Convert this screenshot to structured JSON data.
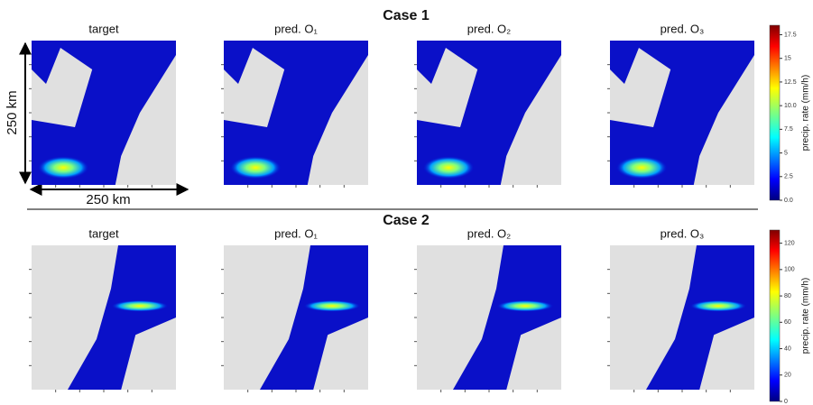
{
  "chart_data": [
    {
      "type": "heatmap",
      "title": "Case 1",
      "panels": [
        "target",
        "pred. O₁",
        "pred. O₂",
        "pred. O₃"
      ],
      "scale_labels": [
        "250 km",
        "250 km"
      ],
      "colorbar_label": "precip. rate (mm/h)",
      "clim": [
        0,
        18.5
      ],
      "cticks": [
        {
          "value": 0,
          "label": "0.0"
        },
        2.5,
        5,
        {
          "value": 7.5,
          "label": "7.5"
        },
        {
          "value": 10,
          "label": "10.0"
        },
        12.5,
        15,
        17.5
      ]
    },
    {
      "type": "heatmap",
      "title": "Case 2",
      "panels": [
        "target",
        "pred. O₁",
        "pred. O₂",
        "pred. O₃"
      ],
      "colorbar_label": "precip. rate (mm/h)",
      "clim": [
        0,
        130
      ],
      "cticks": [
        0,
        20,
        40,
        60,
        80,
        100,
        120
      ]
    }
  ]
}
